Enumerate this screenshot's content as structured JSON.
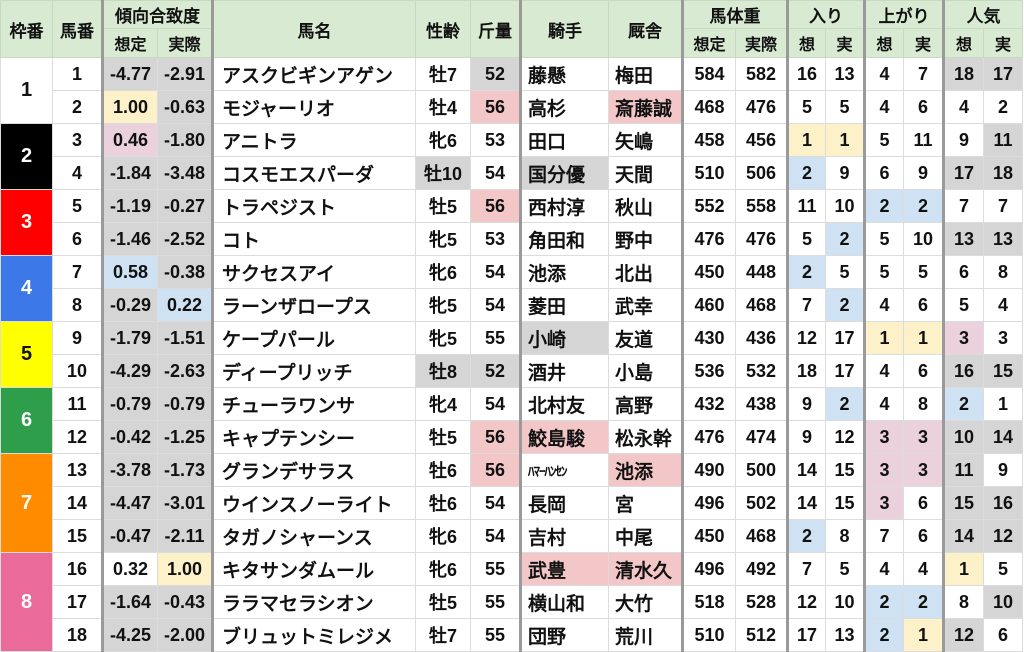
{
  "header": {
    "frame": "枠番",
    "number": "馬番",
    "tendency": "傾向合致度",
    "expected": "想定",
    "actual": "実際",
    "name": "馬名",
    "sex_age": "性齢",
    "weight_carried": "斤量",
    "jockey": "騎手",
    "trainer": "厩舎",
    "body_weight": "馬体重",
    "entry": "入り",
    "last3f": "上がり",
    "popularity": "人気",
    "exp_short": "想",
    "act_short": "実"
  },
  "palette": {
    "g": "#d5d5d5",
    "y": "#fdf1c9",
    "p": "#f3c7c8",
    "m": "#ead1dc",
    "b": "#cfe2f3",
    "-": "#ffffff",
    "header": "#d9ead3"
  },
  "frames": [
    {
      "label": "1",
      "rows": 2,
      "bg": "#ffffff",
      "fg": "#111111"
    },
    {
      "label": "2",
      "rows": 2,
      "bg": "#000000",
      "fg": "#ffffff"
    },
    {
      "label": "3",
      "rows": 2,
      "bg": "#ff0000",
      "fg": "#ffffff"
    },
    {
      "label": "4",
      "rows": 2,
      "bg": "#3c78e8",
      "fg": "#ffffff"
    },
    {
      "label": "5",
      "rows": 2,
      "bg": "#ffff00",
      "fg": "#111111"
    },
    {
      "label": "6",
      "rows": 2,
      "bg": "#2e9e4a",
      "fg": "#ffffff"
    },
    {
      "label": "7",
      "rows": 3,
      "bg": "#ff8c00",
      "fg": "#ffffff"
    },
    {
      "label": "8",
      "rows": 3,
      "bg": "#ea6a9a",
      "fg": "#ffffff"
    }
  ],
  "rows": [
    {
      "num": "1",
      "te": "-4.77",
      "ta": "-2.91",
      "name": "アスクビギンアゲン",
      "sa": "牡7",
      "wc": "52",
      "jk": "藤懸",
      "tr": "梅田",
      "bwe": "584",
      "bwa": "582",
      "ee": "16",
      "ea": "13",
      "le": "4",
      "la": "7",
      "pe": "18",
      "pa": "17",
      "fills": "gg-g------gg"
    },
    {
      "num": "2",
      "te": "1.00",
      "ta": "-0.63",
      "name": "モジャーリオ",
      "sa": "牡4",
      "wc": "56",
      "jk": "高杉",
      "tr": "斎藤誠",
      "bwe": "468",
      "bwa": "476",
      "ee": "5",
      "ea": "5",
      "le": "4",
      "la": "6",
      "pe": "4",
      "pa": "2",
      "fills": "yg-p-p------"
    },
    {
      "num": "3",
      "te": "0.46",
      "ta": "-1.80",
      "name": "アニトラ",
      "sa": "牝6",
      "wc": "53",
      "jk": "田口",
      "tr": "矢嶋",
      "bwe": "458",
      "bwa": "456",
      "ee": "1",
      "ea": "1",
      "le": "5",
      "la": "11",
      "pe": "9",
      "pa": "11",
      "fills": "mg----yy---g"
    },
    {
      "num": "4",
      "te": "-1.84",
      "ta": "-3.48",
      "name": "コスモエスパーダ",
      "sa": "牡10",
      "wc": "54",
      "jk": "国分優",
      "tr": "天間",
      "bwe": "510",
      "bwa": "506",
      "ee": "2",
      "ea": "9",
      "le": "6",
      "la": "9",
      "pe": "17",
      "pa": "18",
      "fills": "ggg-g-b---gg"
    },
    {
      "num": "5",
      "te": "-1.19",
      "ta": "-0.27",
      "name": "トラペジスト",
      "sa": "牡5",
      "wc": "56",
      "jk": "西村淳",
      "tr": "秋山",
      "bwe": "552",
      "bwa": "558",
      "ee": "11",
      "ea": "10",
      "le": "2",
      "la": "2",
      "pe": "7",
      "pa": "7",
      "fills": "gg-p----bb--"
    },
    {
      "num": "6",
      "te": "-1.46",
      "ta": "-2.52",
      "name": "コト",
      "sa": "牝5",
      "wc": "53",
      "jk": "角田和",
      "tr": "野中",
      "bwe": "476",
      "bwa": "476",
      "ee": "5",
      "ea": "2",
      "le": "5",
      "la": "10",
      "pe": "13",
      "pa": "13",
      "fills": "gg-----b--gg"
    },
    {
      "num": "7",
      "te": "0.58",
      "ta": "-0.38",
      "name": "サクセスアイ",
      "sa": "牝6",
      "wc": "54",
      "jk": "池添",
      "tr": "北出",
      "bwe": "450",
      "bwa": "448",
      "ee": "2",
      "ea": "5",
      "le": "5",
      "la": "5",
      "pe": "6",
      "pa": "8",
      "fills": "bg----b-----"
    },
    {
      "num": "8",
      "te": "-0.29",
      "ta": "0.22",
      "name": "ラーンザロープス",
      "sa": "牝5",
      "wc": "54",
      "jk": "菱田",
      "tr": "武幸",
      "bwe": "460",
      "bwa": "468",
      "ee": "7",
      "ea": "2",
      "le": "4",
      "la": "6",
      "pe": "5",
      "pa": "4",
      "fills": "gb-----b----"
    },
    {
      "num": "9",
      "te": "-1.79",
      "ta": "-1.51",
      "name": "ケープパール",
      "sa": "牝5",
      "wc": "55",
      "jk": "小崎",
      "tr": "友道",
      "bwe": "430",
      "bwa": "436",
      "ee": "12",
      "ea": "17",
      "le": "1",
      "la": "1",
      "pe": "3",
      "pa": "3",
      "fills": "gg--g---yym-"
    },
    {
      "num": "10",
      "te": "-4.29",
      "ta": "-2.63",
      "name": "ディープリッチ",
      "sa": "牡8",
      "wc": "52",
      "jk": "酒井",
      "tr": "小島",
      "bwe": "536",
      "bwa": "532",
      "ee": "18",
      "ea": "17",
      "le": "4",
      "la": "6",
      "pe": "16",
      "pa": "15",
      "fills": "gggg------gg"
    },
    {
      "num": "11",
      "te": "-0.79",
      "ta": "-0.79",
      "name": "チューラワンサ",
      "sa": "牝4",
      "wc": "54",
      "jk": "北村友",
      "tr": "高野",
      "bwe": "432",
      "bwa": "438",
      "ee": "9",
      "ea": "2",
      "le": "4",
      "la": "8",
      "pe": "2",
      "pa": "1",
      "fills": "gg-----b--b-"
    },
    {
      "num": "12",
      "te": "-0.42",
      "ta": "-1.25",
      "name": "キャプテンシー",
      "sa": "牡5",
      "wc": "56",
      "jk": "鮫島駿",
      "tr": "松永幹",
      "bwe": "476",
      "bwa": "474",
      "ee": "9",
      "ea": "12",
      "le": "3",
      "la": "3",
      "pe": "10",
      "pa": "14",
      "fills": "gg-pp---mmgg"
    },
    {
      "num": "13",
      "te": "-3.78",
      "ta": "-1.73",
      "name": "グランデサラス",
      "sa": "牡6",
      "wc": "56",
      "jk": "ﾊﾏｰﾊﾝｾﾝ",
      "tr": "池添",
      "bwe": "490",
      "bwa": "500",
      "ee": "14",
      "ea": "15",
      "le": "3",
      "la": "3",
      "pe": "11",
      "pa": "9",
      "fills": "gg-p-p--mmg-"
    },
    {
      "num": "14",
      "te": "-4.47",
      "ta": "-3.01",
      "name": "ウインスノーライト",
      "sa": "牡6",
      "wc": "54",
      "jk": "長岡",
      "tr": "宮",
      "bwe": "496",
      "bwa": "502",
      "ee": "14",
      "ea": "15",
      "le": "3",
      "la": "6",
      "pe": "15",
      "pa": "16",
      "fills": "gg------m-gg"
    },
    {
      "num": "15",
      "te": "-0.47",
      "ta": "-2.11",
      "name": "タガノシャーンス",
      "sa": "牝6",
      "wc": "54",
      "jk": "吉村",
      "tr": "中尾",
      "bwe": "450",
      "bwa": "468",
      "ee": "2",
      "ea": "8",
      "le": "7",
      "la": "6",
      "pe": "14",
      "pa": "12",
      "fills": "gg----b---gg"
    },
    {
      "num": "16",
      "te": "0.32",
      "ta": "1.00",
      "name": "キタサンダムール",
      "sa": "牝6",
      "wc": "55",
      "jk": "武豊",
      "tr": "清水久",
      "bwe": "496",
      "bwa": "492",
      "ee": "7",
      "ea": "5",
      "le": "4",
      "la": "4",
      "pe": "1",
      "pa": "5",
      "fills": "-y--pp----y-"
    },
    {
      "num": "17",
      "te": "-1.64",
      "ta": "-0.43",
      "name": "ララマセラシオン",
      "sa": "牡5",
      "wc": "55",
      "jk": "横山和",
      "tr": "大竹",
      "bwe": "518",
      "bwa": "528",
      "ee": "12",
      "ea": "10",
      "le": "2",
      "la": "2",
      "pe": "8",
      "pa": "10",
      "fills": "gg------bb-g"
    },
    {
      "num": "18",
      "te": "-4.25",
      "ta": "-2.00",
      "name": "ブリュットミレジメ",
      "sa": "牡7",
      "wc": "55",
      "jk": "団野",
      "tr": "荒川",
      "bwe": "510",
      "bwa": "512",
      "ee": "17",
      "ea": "13",
      "le": "2",
      "la": "1",
      "pe": "12",
      "pa": "6",
      "fills": "gg------byg-"
    }
  ]
}
